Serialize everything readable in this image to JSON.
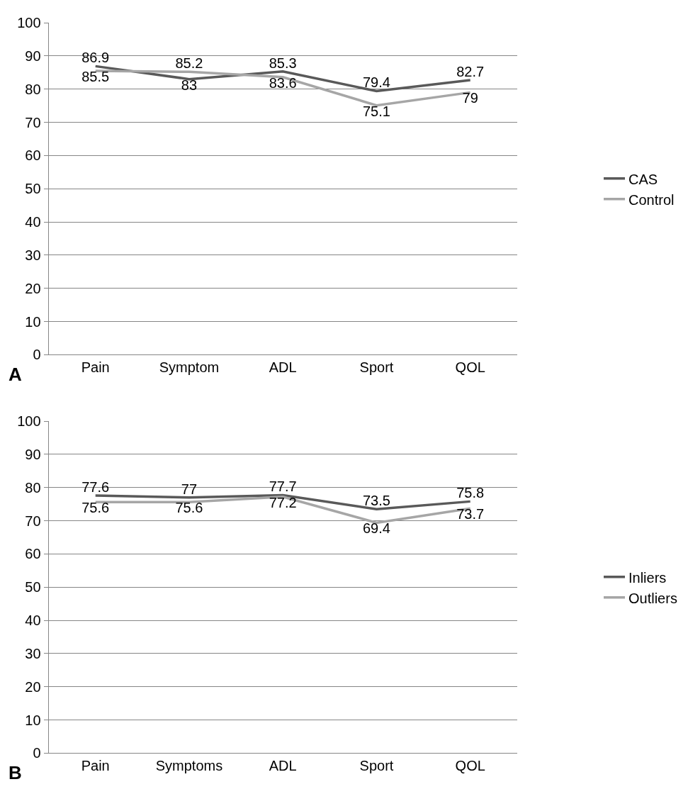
{
  "chart_data": [
    {
      "type": "line",
      "categories": [
        "Pain",
        "Symptom",
        "ADL",
        "Sport",
        "QOL"
      ],
      "series": [
        {
          "name": "CAS",
          "color": "#595959",
          "values": [
            86.9,
            83,
            85.3,
            79.4,
            82.7
          ]
        },
        {
          "name": "Control",
          "color": "#a6a6a6",
          "values": [
            85.5,
            85.2,
            83.6,
            75.1,
            79
          ]
        }
      ],
      "ylim": [
        0,
        100
      ],
      "yticks": [
        0,
        10,
        20,
        30,
        40,
        50,
        60,
        70,
        80,
        90,
        100
      ],
      "grid": "y",
      "legend": "right",
      "data_labels": true,
      "marker": "none",
      "line_style": "solid",
      "annotations": [
        "A"
      ]
    },
    {
      "type": "line",
      "categories": [
        "Pain",
        "Symptoms",
        "ADL",
        "Sport",
        "QOL"
      ],
      "series": [
        {
          "name": "Inliers",
          "color": "#595959",
          "values": [
            77.6,
            77,
            77.7,
            73.5,
            75.8
          ]
        },
        {
          "name": "Outliers",
          "color": "#a6a6a6",
          "values": [
            75.6,
            75.6,
            77.2,
            69.4,
            73.7
          ]
        }
      ],
      "ylim": [
        0,
        100
      ],
      "yticks": [
        0,
        10,
        20,
        30,
        40,
        50,
        60,
        70,
        80,
        90,
        100
      ],
      "grid": "y",
      "legend": "right",
      "data_labels": true,
      "marker": "none",
      "line_style": "solid",
      "annotations": [
        "B"
      ]
    }
  ]
}
